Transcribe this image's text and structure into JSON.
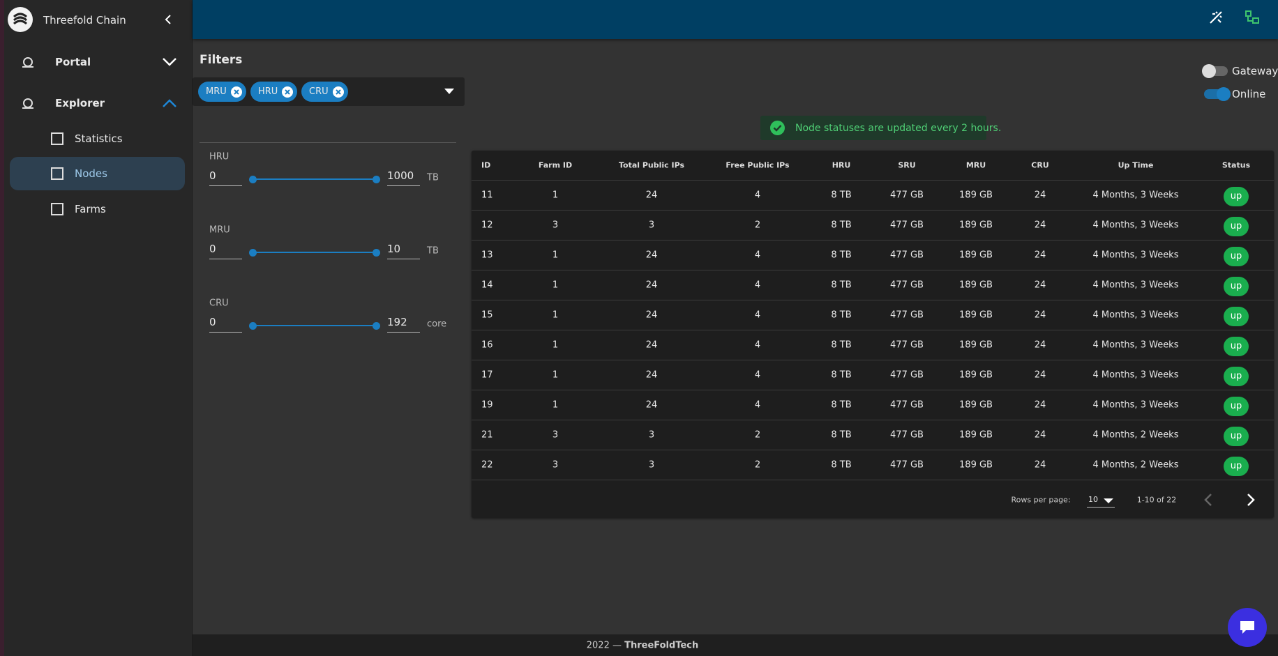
{
  "sidebar": {
    "title": "Threefold Chain",
    "nav": [
      {
        "label": "Portal"
      },
      {
        "label": "Explorer"
      }
    ],
    "subnav": [
      {
        "label": "Statistics"
      },
      {
        "label": "Nodes"
      },
      {
        "label": "Farms"
      }
    ]
  },
  "filters": {
    "title": "Filters",
    "chips": [
      "MRU",
      "HRU",
      "CRU"
    ],
    "ranges": [
      {
        "label": "HRU",
        "min": "0",
        "max": "1000",
        "unit": "TB"
      },
      {
        "label": "MRU",
        "min": "0",
        "max": "10",
        "unit": "TB"
      },
      {
        "label": "CRU",
        "min": "0",
        "max": "192",
        "unit": "core"
      }
    ]
  },
  "toggles": [
    {
      "label": "Gateways",
      "on": false
    },
    {
      "label": "Online",
      "on": true
    }
  ],
  "alert": "Node statuses are updated every 2 hours.",
  "table": {
    "columns": [
      "ID",
      "Farm ID",
      "Total Public IPs",
      "Free Public IPs",
      "HRU",
      "SRU",
      "MRU",
      "CRU",
      "Up Time",
      "Status"
    ],
    "rows": [
      [
        "11",
        "1",
        "24",
        "4",
        "8 TB",
        "477 GB",
        "189 GB",
        "24",
        "4 Months, 3 Weeks",
        "up"
      ],
      [
        "12",
        "3",
        "3",
        "2",
        "8 TB",
        "477 GB",
        "189 GB",
        "24",
        "4 Months, 3 Weeks",
        "up"
      ],
      [
        "13",
        "1",
        "24",
        "4",
        "8 TB",
        "477 GB",
        "189 GB",
        "24",
        "4 Months, 3 Weeks",
        "up"
      ],
      [
        "14",
        "1",
        "24",
        "4",
        "8 TB",
        "477 GB",
        "189 GB",
        "24",
        "4 Months, 3 Weeks",
        "up"
      ],
      [
        "15",
        "1",
        "24",
        "4",
        "8 TB",
        "477 GB",
        "189 GB",
        "24",
        "4 Months, 3 Weeks",
        "up"
      ],
      [
        "16",
        "1",
        "24",
        "4",
        "8 TB",
        "477 GB",
        "189 GB",
        "24",
        "4 Months, 3 Weeks",
        "up"
      ],
      [
        "17",
        "1",
        "24",
        "4",
        "8 TB",
        "477 GB",
        "189 GB",
        "24",
        "4 Months, 3 Weeks",
        "up"
      ],
      [
        "19",
        "1",
        "24",
        "4",
        "8 TB",
        "477 GB",
        "189 GB",
        "24",
        "4 Months, 3 Weeks",
        "up"
      ],
      [
        "21",
        "3",
        "3",
        "2",
        "8 TB",
        "477 GB",
        "189 GB",
        "24",
        "4 Months, 2 Weeks",
        "up"
      ],
      [
        "22",
        "3",
        "3",
        "2",
        "8 TB",
        "477 GB",
        "189 GB",
        "24",
        "4 Months, 2 Weeks",
        "up"
      ]
    ]
  },
  "pagination": {
    "rows_per_page_label": "Rows per page:",
    "rows_per_page": "10",
    "range": "1-10 of 22"
  },
  "footer": {
    "year": "2022 —",
    "brand": "ThreeFoldTech"
  }
}
